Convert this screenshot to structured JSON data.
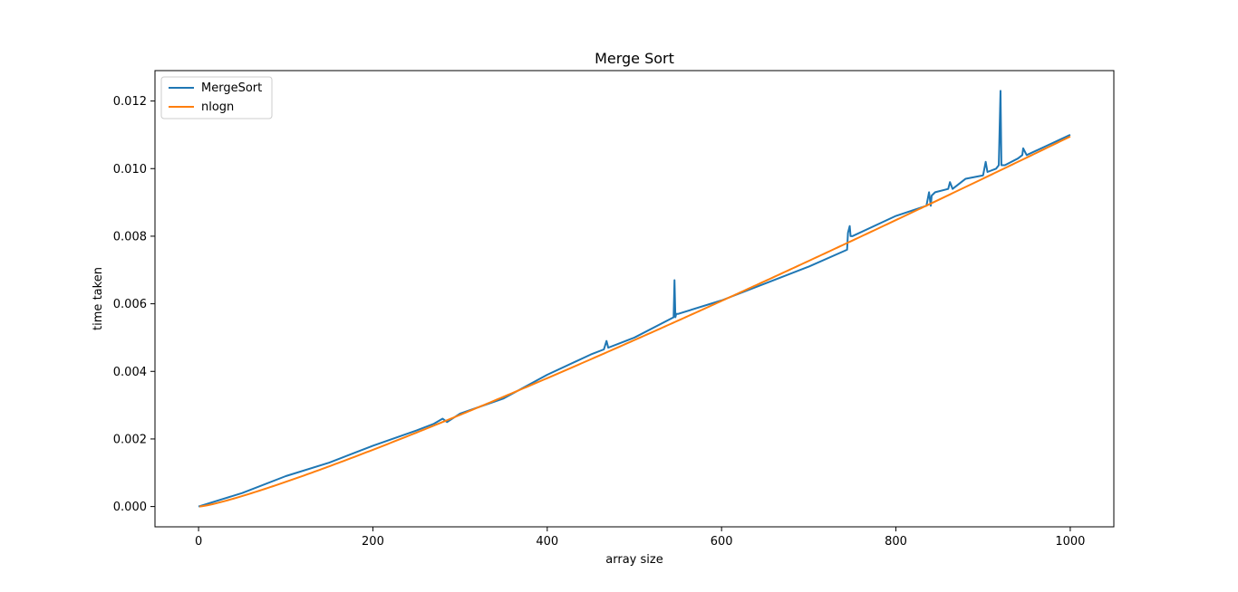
{
  "chart_data": {
    "type": "line",
    "title": "Merge Sort",
    "xlabel": "array size",
    "ylabel": "time taken",
    "xlim": [
      -50,
      1050
    ],
    "ylim": [
      -0.0006,
      0.0129
    ],
    "x_ticks": [
      0,
      200,
      400,
      600,
      800,
      1000
    ],
    "x_tick_labels": [
      "0",
      "200",
      "400",
      "600",
      "800",
      "1000"
    ],
    "y_ticks": [
      0,
      0.002,
      0.004,
      0.006,
      0.008,
      0.01,
      0.012
    ],
    "y_tick_labels": [
      "0.000",
      "0.002",
      "0.004",
      "0.006",
      "0.008",
      "0.010",
      "0.012"
    ],
    "legend_position": "top-left",
    "grid": false,
    "series": [
      {
        "name": "MergeSort",
        "color": "#1f77b4",
        "x": [
          0,
          50,
          100,
          150,
          200,
          250,
          270,
          280,
          285,
          300,
          350,
          400,
          450,
          465,
          468,
          470,
          500,
          545,
          546,
          547,
          548,
          550,
          600,
          650,
          700,
          744,
          745,
          747,
          748,
          750,
          800,
          835,
          838,
          840,
          841,
          845,
          860,
          862,
          865,
          880,
          900,
          903,
          905,
          915,
          918,
          920,
          921,
          925,
          940,
          945,
          946,
          950,
          975,
          1000
        ],
        "y": [
          0.0,
          0.0004,
          0.0009,
          0.0013,
          0.0018,
          0.00225,
          0.00245,
          0.0026,
          0.0025,
          0.00275,
          0.0032,
          0.0039,
          0.0045,
          0.00465,
          0.0049,
          0.0047,
          0.005,
          0.0056,
          0.0067,
          0.0056,
          0.0057,
          0.0057,
          0.0061,
          0.0066,
          0.0071,
          0.0076,
          0.0081,
          0.0083,
          0.008,
          0.008,
          0.0086,
          0.0089,
          0.0093,
          0.0089,
          0.0092,
          0.0093,
          0.0094,
          0.0096,
          0.0094,
          0.0097,
          0.0098,
          0.0102,
          0.0099,
          0.01,
          0.0101,
          0.0123,
          0.0101,
          0.0101,
          0.0103,
          0.0104,
          0.0106,
          0.0104,
          0.0107,
          0.011
        ]
      },
      {
        "name": "nlogn",
        "color": "#ff7f0e",
        "function": "nlogn",
        "x_range": [
          1,
          1000
        ],
        "y_end": 0.01095
      }
    ]
  }
}
